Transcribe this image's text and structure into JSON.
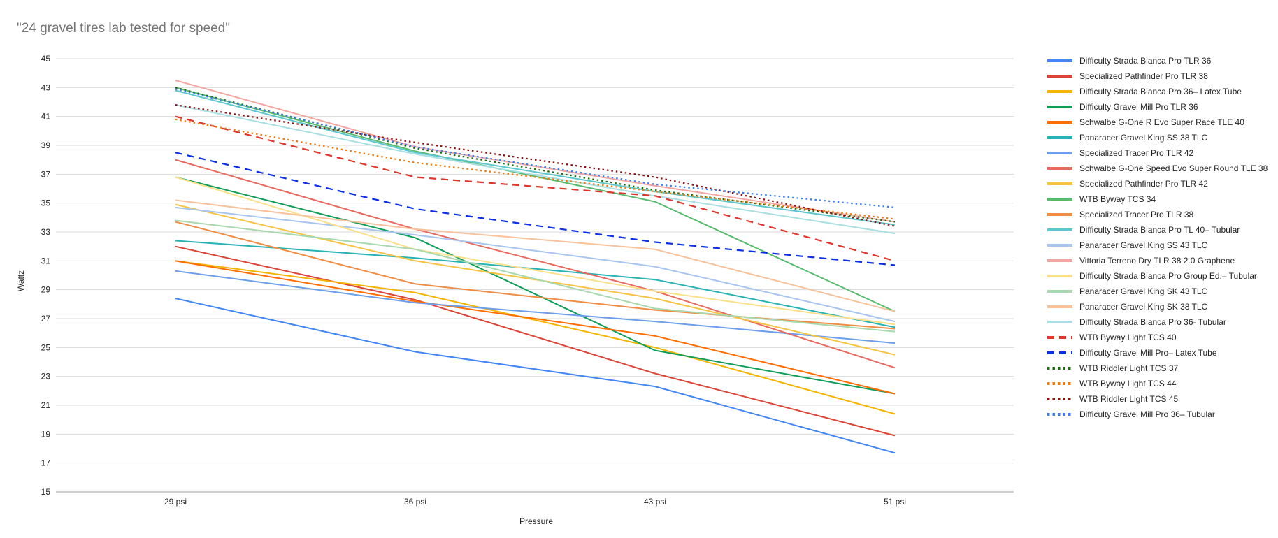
{
  "chart_data": {
    "type": "line",
    "title": "\"24 gravel tires lab tested for speed\"",
    "xlabel": "Pressure",
    "ylabel": "Wattz",
    "categories": [
      "29 psi",
      "36 psi",
      "43 psi",
      "51 psi"
    ],
    "ylim": [
      15,
      45
    ],
    "yticks": [
      15,
      17,
      19,
      21,
      23,
      25,
      27,
      29,
      31,
      33,
      35,
      37,
      39,
      41,
      43,
      45
    ],
    "grid": true,
    "legend_position": "right",
    "series": [
      {
        "name": "Difficulty Strada Bianca Pro TLR 36",
        "color": "#4285f4",
        "dash": "solid",
        "values": [
          28.4,
          24.7,
          22.3,
          17.7
        ]
      },
      {
        "name": "Specialized Pathfinder Pro TLR 38",
        "color": "#db4437",
        "dash": "solid",
        "values": [
          32.0,
          28.3,
          23.2,
          18.9
        ]
      },
      {
        "name": "Difficulty Strada Bianca Pro 36– Latex Tube",
        "color": "#f4b400",
        "dash": "solid",
        "values": [
          31.0,
          28.8,
          25.0,
          20.4
        ]
      },
      {
        "name": "Difficulty Gravel Mill Pro TLR 36",
        "color": "#0f9d58",
        "dash": "solid",
        "values": [
          36.8,
          32.6,
          24.8,
          21.8
        ]
      },
      {
        "name": "Schwalbe G-One R Evo Super Race TLE 40",
        "color": "#ff6d01",
        "dash": "solid",
        "values": [
          31.0,
          28.2,
          25.8,
          21.8
        ]
      },
      {
        "name": "Panaracer Gravel King SS 38 TLC",
        "color": "#27b3b3",
        "dash": "solid",
        "values": [
          32.4,
          31.2,
          29.7,
          26.4
        ]
      },
      {
        "name": "Specialized Tracer Pro TLR 42",
        "color": "#6d9eeb",
        "dash": "solid",
        "values": [
          30.3,
          28.1,
          26.8,
          25.3
        ]
      },
      {
        "name": "Schwalbe G-One Speed Evo Super Round TLE 38",
        "color": "#e8695f",
        "dash": "solid",
        "values": [
          38.0,
          33.2,
          28.9,
          23.6
        ]
      },
      {
        "name": "Specialized Pathfinder Pro TLR 42",
        "color": "#f6c342",
        "dash": "solid",
        "values": [
          34.9,
          31.0,
          28.4,
          24.5
        ]
      },
      {
        "name": "WTB Byway TCS 34",
        "color": "#57bb6e",
        "dash": "solid",
        "values": [
          43.0,
          38.6,
          35.1,
          27.5
        ]
      },
      {
        "name": "Specialized Tracer Pro TLR 38",
        "color": "#f18c43",
        "dash": "solid",
        "values": [
          33.7,
          29.4,
          27.6,
          26.3
        ]
      },
      {
        "name": "Difficulty Strada Bianca Pro TL 40– Tubular",
        "color": "#5ec7ce",
        "dash": "solid",
        "values": [
          42.8,
          38.5,
          35.8,
          33.5
        ]
      },
      {
        "name": "Panaracer Gravel King SS 43 TLC",
        "color": "#a7c5ef",
        "dash": "solid",
        "values": [
          34.7,
          32.8,
          30.6,
          26.8
        ]
      },
      {
        "name": "Vittoria Terreno Dry TLR 38 2.0 Graphene",
        "color": "#f4a7a2",
        "dash": "solid",
        "values": [
          43.5,
          38.9,
          36.2,
          33.7
        ]
      },
      {
        "name": "Difficulty Strada Bianca Pro Group Ed.– Tubular",
        "color": "#fbe08a",
        "dash": "solid",
        "values": [
          36.8,
          31.8,
          28.9,
          26.6
        ]
      },
      {
        "name": "Panaracer Gravel King SK 43 TLC",
        "color": "#a8d8ad",
        "dash": "solid",
        "values": [
          33.8,
          31.8,
          27.7,
          26.1
        ]
      },
      {
        "name": "Panaracer Gravel King SK 38 TLC",
        "color": "#f7c29c",
        "dash": "solid",
        "values": [
          35.2,
          33.2,
          31.8,
          27.5
        ]
      },
      {
        "name": "Difficulty Strada Bianca Pro 36- Tubular",
        "color": "#a8dfe2",
        "dash": "solid",
        "values": [
          41.8,
          38.4,
          35.5,
          32.9
        ]
      },
      {
        "name": "WTB Byway Light TCS 40",
        "color": "#e0352b",
        "dash": "dashed",
        "values": [
          41.0,
          36.8,
          35.5,
          31.0
        ]
      },
      {
        "name": "Difficulty Gravel Mill Pro– Latex Tube",
        "color": "#0b2ee6",
        "dash": "dashed",
        "values": [
          38.5,
          34.6,
          32.3,
          30.7
        ]
      },
      {
        "name": "WTB Riddler Light TCS 37",
        "color": "#1c6b12",
        "dash": "dotted",
        "values": [
          43.0,
          38.8,
          35.9,
          33.7
        ]
      },
      {
        "name": "WTB Byway Light TCS 44",
        "color": "#f07a0c",
        "dash": "dotted",
        "values": [
          40.8,
          37.8,
          35.8,
          33.9
        ]
      },
      {
        "name": "WTB Riddler Light TCS 45",
        "color": "#8a1010",
        "dash": "dotted",
        "values": [
          41.8,
          39.2,
          36.8,
          33.4
        ]
      },
      {
        "name": "Difficulty Gravel Mill Pro 36– Tubular",
        "color": "#3a7ef0",
        "dash": "dotted",
        "values": [
          42.9,
          38.9,
          36.3,
          34.7
        ]
      }
    ]
  }
}
